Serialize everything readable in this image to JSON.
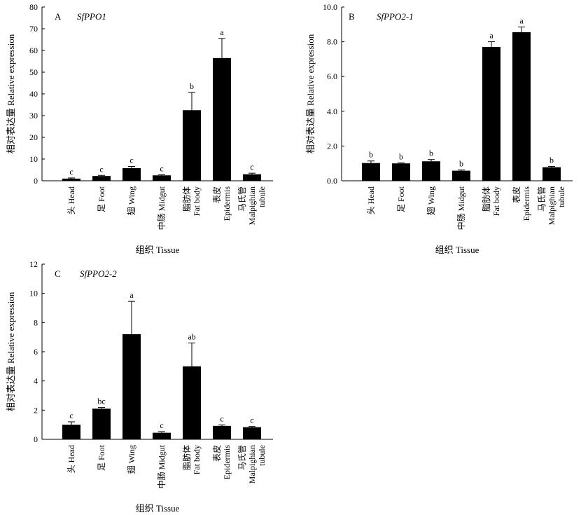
{
  "chart_data": [
    {
      "type": "bar",
      "panel": "A",
      "gene": "SfPPO1",
      "ylabel": "相对表达量 Relative expression",
      "xlabel": "组织 Tissue",
      "ylim": [
        0,
        80
      ],
      "yticks": [
        0,
        10,
        20,
        30,
        40,
        50,
        60,
        70,
        80
      ],
      "categories": [
        [
          "头 Head"
        ],
        [
          "足 Foot"
        ],
        [
          "翅 Wing"
        ],
        [
          "中肠 Midgut"
        ],
        [
          "脂肪体",
          "Fat body"
        ],
        [
          "表皮",
          "Epidermis"
        ],
        [
          "马氏管",
          "Malpighian",
          "tubule"
        ]
      ],
      "values": [
        1.0,
        2.2,
        5.8,
        2.5,
        32.5,
        56.5,
        3.0
      ],
      "errors": [
        0.3,
        0.3,
        0.8,
        0.3,
        8.2,
        9.0,
        0.5
      ],
      "significance": [
        "c",
        "c",
        "c",
        "c",
        "b",
        "a",
        "c"
      ]
    },
    {
      "type": "bar",
      "panel": "B",
      "gene": "SfPPO2-1",
      "ylabel": "相对表达量 Relative expression",
      "xlabel": "组织 Tissue",
      "ylim": [
        0,
        10
      ],
      "yticks": [
        0,
        2,
        4,
        6,
        8,
        10
      ],
      "ytick_format": "1dp",
      "categories": [
        [
          "头 Head"
        ],
        [
          "足 Foot"
        ],
        [
          "翅 Wing"
        ],
        [
          "中肠 Midgut"
        ],
        [
          "脂肪体",
          "Fat body"
        ],
        [
          "表皮",
          "Epidermis"
        ],
        [
          "马氏管",
          "Malpighian",
          "tubule"
        ]
      ],
      "values": [
        1.02,
        1.0,
        1.12,
        0.58,
        7.7,
        8.55,
        0.78
      ],
      "errors": [
        0.12,
        0.03,
        0.1,
        0.04,
        0.3,
        0.3,
        0.05
      ],
      "significance": [
        "b",
        "b",
        "b",
        "b",
        "a",
        "a",
        "b"
      ]
    },
    {
      "type": "bar",
      "panel": "C",
      "gene": "SfPPO2-2",
      "ylabel": "相对表达量 Relative expression",
      "xlabel": "组织 Tissue",
      "ylim": [
        0,
        12
      ],
      "yticks": [
        0,
        2,
        4,
        6,
        8,
        10,
        12
      ],
      "categories": [
        [
          "头 Head"
        ],
        [
          "足 Foot"
        ],
        [
          "翅 Wing"
        ],
        [
          "中肠 Midgut"
        ],
        [
          "脂肪体",
          "Fat body"
        ],
        [
          "表皮",
          "Epidermis"
        ],
        [
          "马氏管",
          "Malpighian",
          "tubule"
        ]
      ],
      "values": [
        1.0,
        2.1,
        7.2,
        0.45,
        5.0,
        0.92,
        0.83
      ],
      "errors": [
        0.2,
        0.08,
        2.25,
        0.08,
        1.6,
        0.07,
        0.05
      ],
      "significance": [
        "c",
        "bc",
        "a",
        "c",
        "ab",
        "c",
        "c"
      ]
    }
  ]
}
